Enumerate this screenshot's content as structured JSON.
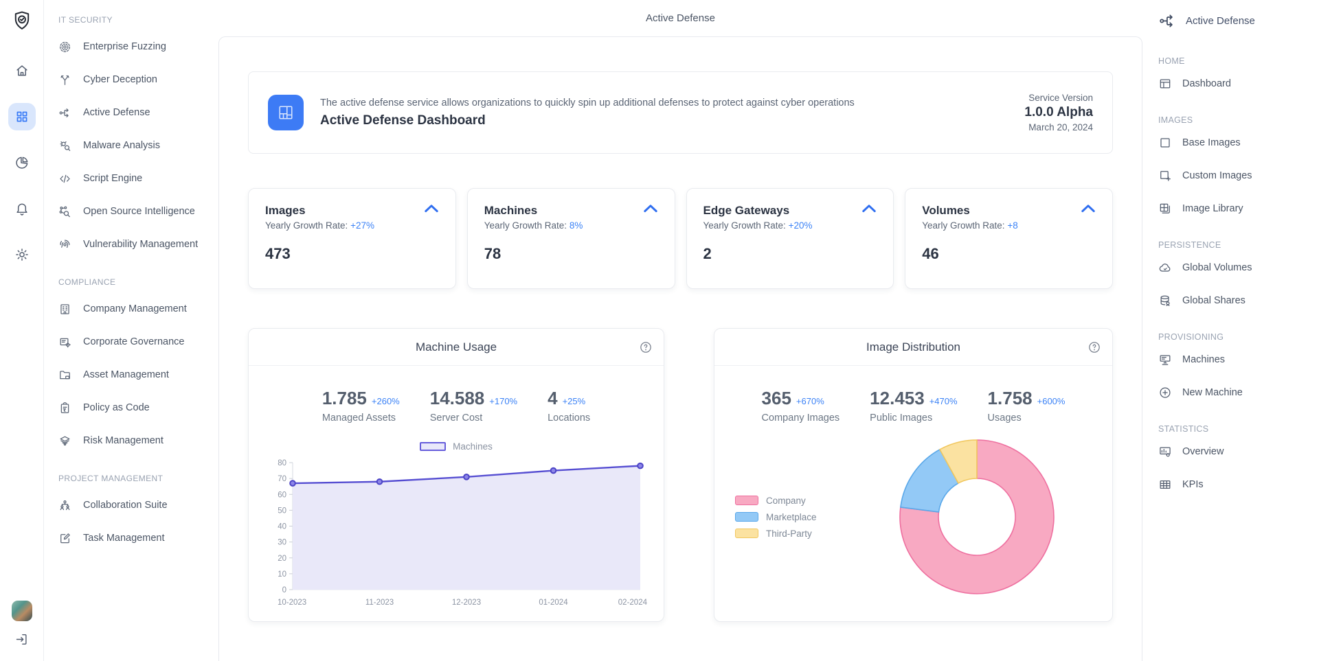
{
  "app": {
    "topbar_title": "Active Defense",
    "accent": "#3b82f6"
  },
  "rail": {
    "logo_icon": "shield-check-icon",
    "items": [
      {
        "name": "home",
        "icon": "home-icon",
        "active": false
      },
      {
        "name": "apps",
        "icon": "grid-icon",
        "active": true
      },
      {
        "name": "analytics",
        "icon": "pie-chart-icon",
        "active": false
      },
      {
        "name": "notifications",
        "icon": "bell-icon",
        "active": false
      },
      {
        "name": "settings",
        "icon": "gear-icon",
        "active": false
      }
    ],
    "logout_icon": "logout-icon"
  },
  "sidebar": {
    "sections": [
      {
        "title": "IT SECURITY",
        "items": [
          {
            "label": "Enterprise Fuzzing",
            "icon": "target-icon"
          },
          {
            "label": "Cyber Deception",
            "icon": "branch-icon"
          },
          {
            "label": "Active Defense",
            "icon": "flow-icon"
          },
          {
            "label": "Malware Analysis",
            "icon": "bug-search-icon"
          },
          {
            "label": "Script Engine",
            "icon": "code-icon"
          },
          {
            "label": "Open Source Intelligence",
            "icon": "network-search-icon"
          },
          {
            "label": "Vulnerability Management",
            "icon": "fingerprint-icon"
          }
        ]
      },
      {
        "title": "COMPLIANCE",
        "items": [
          {
            "label": "Company Management",
            "icon": "building-icon"
          },
          {
            "label": "Corporate Governance",
            "icon": "list-gear-icon"
          },
          {
            "label": "Asset Management",
            "icon": "folder-icon"
          },
          {
            "label": "Policy as Code",
            "icon": "clipboard-icon"
          },
          {
            "label": "Risk Management",
            "icon": "layers-icon"
          }
        ]
      },
      {
        "title": "PROJECT MANAGEMENT",
        "items": [
          {
            "label": "Collaboration Suite",
            "icon": "org-chart-icon"
          },
          {
            "label": "Task Management",
            "icon": "edit-square-icon"
          }
        ]
      }
    ]
  },
  "header_card": {
    "icon": "layout-tile-icon",
    "description": "The active defense service allows organizations to quickly spin up additional defenses to protect against cyber operations",
    "title": "Active Defense Dashboard",
    "version_label": "Service Version",
    "version": "1.0.0 Alpha",
    "date": "March 20, 2024"
  },
  "stat_cards": [
    {
      "title": "Images",
      "growth_prefix": "Yearly Growth Rate:",
      "growth_value": "+27%",
      "value": "473"
    },
    {
      "title": "Machines",
      "growth_prefix": "Yearly Growth Rate:",
      "growth_value": "8%",
      "value": "78"
    },
    {
      "title": "Edge Gateways",
      "growth_prefix": "Yearly Growth Rate:",
      "growth_value": "+20%",
      "value": "2"
    },
    {
      "title": "Volumes",
      "growth_prefix": "Yearly Growth Rate:",
      "growth_value": "+8",
      "value": "46"
    }
  ],
  "chart_data": [
    {
      "type": "area",
      "title": "Machine Usage",
      "categories": [
        "10-2023",
        "11-2023",
        "12-2023",
        "01-2024",
        "02-2024"
      ],
      "series": [
        {
          "name": "Machines",
          "values": [
            67,
            68,
            71,
            75,
            78
          ]
        }
      ],
      "ylim": [
        0,
        80
      ],
      "yticks": [
        0,
        10,
        20,
        30,
        40,
        50,
        60,
        70,
        80
      ],
      "grid": false,
      "legend_position": "top",
      "line_color": "#564ed2",
      "fill_color": "#e9e8f9",
      "stats": [
        {
          "value": "1.785",
          "delta": "+260%",
          "label": "Managed Assets"
        },
        {
          "value": "14.588",
          "delta": "+170%",
          "label": "Server Cost"
        },
        {
          "value": "4",
          "delta": "+25%",
          "label": "Locations"
        }
      ]
    },
    {
      "type": "donut",
      "title": "Image Distribution",
      "legend_position": "left",
      "inner_radius_ratio": 0.5,
      "segments": [
        {
          "label": "Company",
          "percent": 77,
          "fill": "#f8a9c2",
          "stroke": "#ee6f9f"
        },
        {
          "label": "Marketplace",
          "percent": 15,
          "fill": "#93c9f6",
          "stroke": "#58a7e9"
        },
        {
          "label": "Third-Party",
          "percent": 8,
          "fill": "#fbe2a1",
          "stroke": "#f1c75e"
        }
      ],
      "stats": [
        {
          "value": "365",
          "delta": "+670%",
          "label": "Company Images"
        },
        {
          "value": "12.453",
          "delta": "+470%",
          "label": "Public Images"
        },
        {
          "value": "1.758",
          "delta": "+600%",
          "label": "Usages"
        }
      ]
    }
  ],
  "right_panel": {
    "header": {
      "icon": "flow-icon",
      "label": "Active Defense"
    },
    "sections": [
      {
        "title": "HOME",
        "items": [
          {
            "label": "Dashboard",
            "icon": "dashboard-icon"
          }
        ]
      },
      {
        "title": "IMAGES",
        "items": [
          {
            "label": "Base Images",
            "icon": "square-icon"
          },
          {
            "label": "Custom Images",
            "icon": "square-plus-icon"
          },
          {
            "label": "Image Library",
            "icon": "grid-stack-icon"
          }
        ]
      },
      {
        "title": "PERSISTENCE",
        "items": [
          {
            "label": "Global Volumes",
            "icon": "cloud-icon"
          },
          {
            "label": "Global Shares",
            "icon": "database-icon"
          }
        ]
      },
      {
        "title": "PROVISIONING",
        "items": [
          {
            "label": "Machines",
            "icon": "server-icon"
          },
          {
            "label": "New Machine",
            "icon": "circle-plus-icon"
          }
        ]
      },
      {
        "title": "STATISTICS",
        "items": [
          {
            "label": "Overview",
            "icon": "chart-board-icon"
          },
          {
            "label": "KPIs",
            "icon": "table-icon"
          }
        ]
      }
    ]
  }
}
